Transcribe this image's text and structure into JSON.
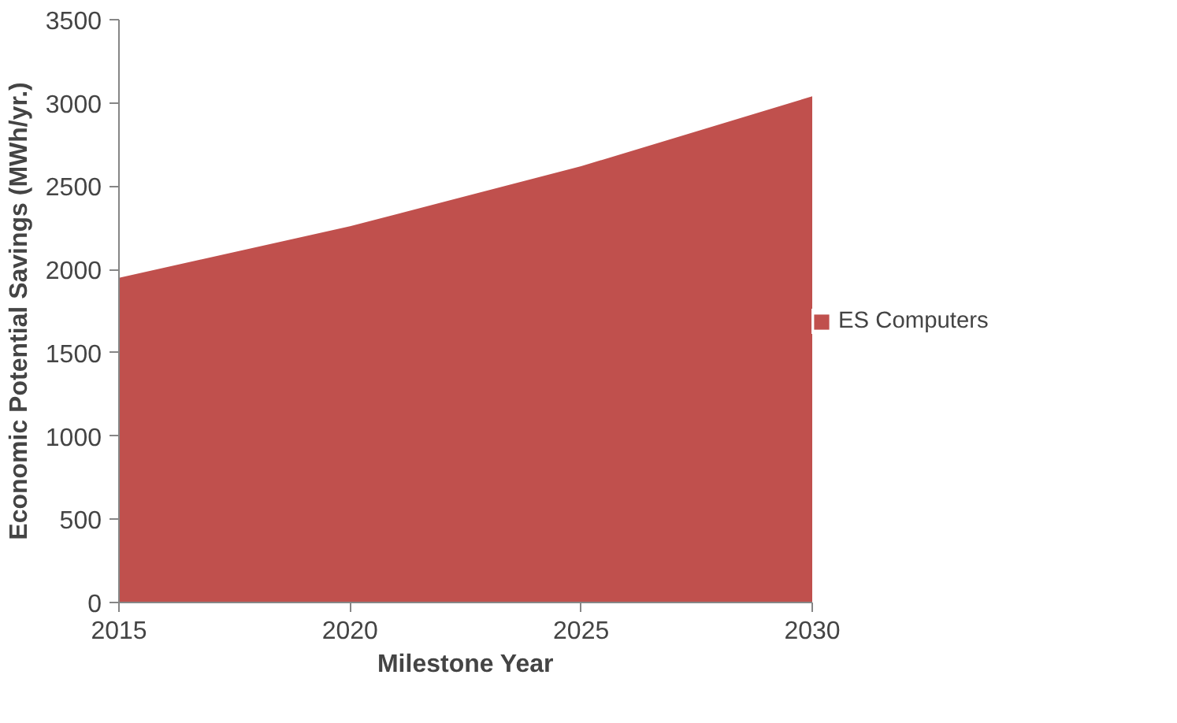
{
  "chart_data": {
    "type": "area",
    "xlabel": "Milestone Year",
    "ylabel": "Economic Potential Savings (MWh/yr.)",
    "x": [
      2015,
      2020,
      2025,
      2030
    ],
    "series": [
      {
        "name": "ES Computers",
        "color": "#c0504d",
        "values": [
          1950,
          2260,
          2620,
          3040
        ]
      }
    ],
    "xlim": [
      2015,
      2030
    ],
    "xticks": [
      2015,
      2020,
      2025,
      2030
    ],
    "ylim": [
      0,
      3500
    ],
    "yticks": [
      0,
      500,
      1000,
      1500,
      2000,
      2500,
      3000,
      3500
    ],
    "grid": false,
    "legend": "right"
  }
}
